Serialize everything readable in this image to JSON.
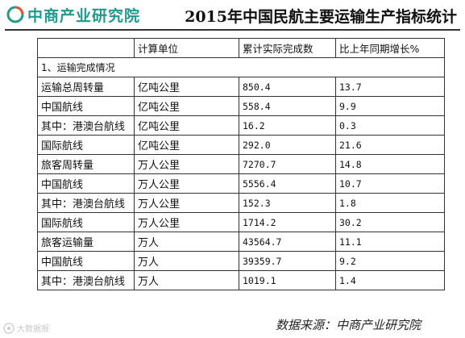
{
  "header": {
    "logo_text": "中商产业研究院",
    "title": "2015年中国民航主要运输生产指标统计"
  },
  "table": {
    "columns": [
      "",
      "计算单位",
      "累计实际完成数",
      "比上年同期增长%"
    ],
    "section": "1、运输完成情况",
    "rows": [
      {
        "name": "运输总周转量",
        "unit": "亿吨公里",
        "value": "850.4",
        "growth": "13.7"
      },
      {
        "name": "中国航线",
        "unit": "亿吨公里",
        "value": "558.4",
        "growth": "9.9"
      },
      {
        "name": "其中：港澳台航线",
        "unit": "亿吨公里",
        "value": "16.2",
        "growth": "0.3"
      },
      {
        "name": "国际航线",
        "unit": "亿吨公里",
        "value": "292.0",
        "growth": "21.6"
      },
      {
        "name": "旅客周转量",
        "unit": "万人公里",
        "value": "7270.7",
        "growth": "14.8"
      },
      {
        "name": "中国航线",
        "unit": "万人公里",
        "value": "5556.4",
        "growth": "10.7"
      },
      {
        "name": "其中：港澳台航线",
        "unit": "万人公里",
        "value": "152.3",
        "growth": "1.8"
      },
      {
        "name": "国际航线",
        "unit": "万人公里",
        "value": "1714.2",
        "growth": "30.2"
      },
      {
        "name": "旅客运输量",
        "unit": "万人",
        "value": "43564.7",
        "growth": "11.1"
      },
      {
        "name": "中国航线",
        "unit": "万人",
        "value": "39359.7",
        "growth": "9.2"
      },
      {
        "name": "其中：港澳台航线",
        "unit": "万人",
        "value": "1019.1",
        "growth": "1.4"
      }
    ]
  },
  "footer": {
    "source": "数据来源：中商产业研究院",
    "watermark": "大数据报"
  },
  "colors": {
    "logo": "#1f9a8e",
    "logo_accent": "#e8572a"
  }
}
